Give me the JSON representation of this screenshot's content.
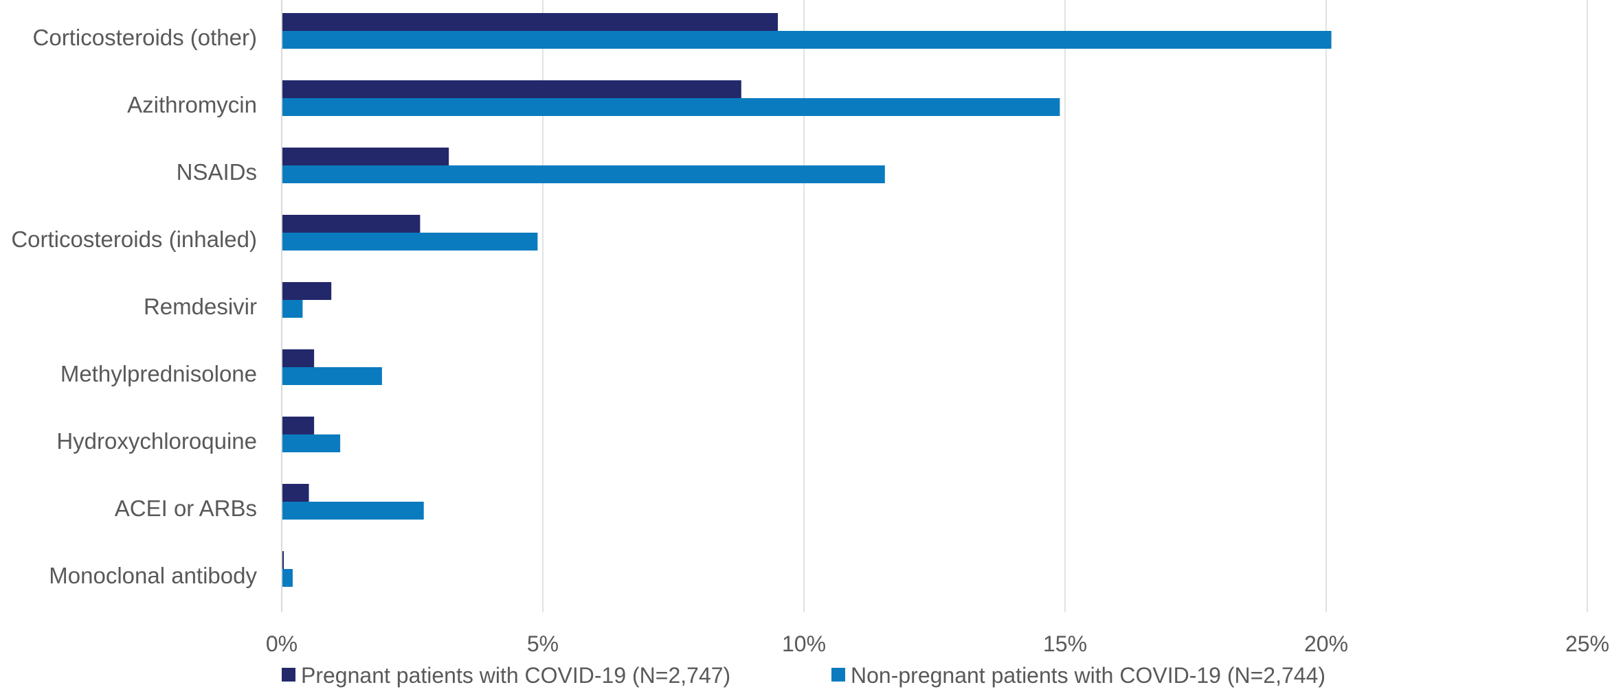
{
  "chart_data": {
    "type": "bar",
    "orientation": "horizontal",
    "categories": [
      "Corticosteroids (other)",
      "Azithromycin",
      "NSAIDs",
      "Corticosteroids (inhaled)",
      "Remdesivir",
      "Methylprednisolone",
      "Hydroxychloroquine",
      "ACEI or ARBs",
      "Monoclonal antibody"
    ],
    "series": [
      {
        "name": "Pregnant patients with COVID-19 (N=2,747)",
        "color": "#23286b",
        "values": [
          9.5,
          8.8,
          3.2,
          2.65,
          0.95,
          0.62,
          0.62,
          0.52,
          0.04
        ]
      },
      {
        "name": "Non-pregnant patients with COVID-19 (N=2,744)",
        "color": "#0b7bbf",
        "values": [
          20.1,
          14.9,
          11.55,
          4.9,
          0.4,
          1.92,
          1.12,
          2.72,
          0.21
        ]
      }
    ],
    "xlim": [
      0,
      25
    ],
    "xticks": [
      "0%",
      "5%",
      "10%",
      "15%",
      "20%",
      "25%"
    ],
    "x_tick_values": [
      0,
      5,
      10,
      15,
      20,
      25
    ],
    "grid": "vertical",
    "legend": "bottom",
    "title": "",
    "xlabel": "",
    "ylabel": ""
  }
}
